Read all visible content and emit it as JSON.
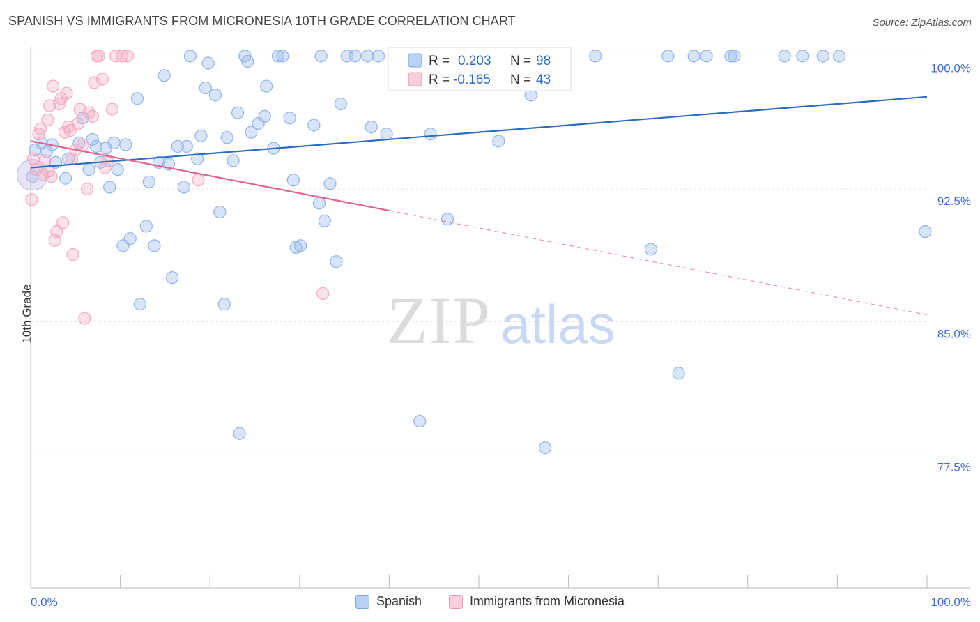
{
  "header": {
    "title": "SPANISH VS IMMIGRANTS FROM MICRONESIA 10TH GRADE CORRELATION CHART",
    "source": "Source: ZipAtlas.com"
  },
  "watermark": {
    "zip": "ZIP",
    "atlas": "atlas"
  },
  "chart_data": {
    "type": "scatter",
    "title": "SPANISH VS IMMIGRANTS FROM MICRONESIA 10TH GRADE CORRELATION CHART",
    "ylabel": "10th Grade",
    "xlabel": "",
    "xlim": [
      0,
      100
    ],
    "ylim": [
      70.0,
      100.8
    ],
    "x_tick_labels": [
      "0.0%",
      "100.0%"
    ],
    "y_ticks": [
      100.0,
      92.5,
      85.0,
      77.5
    ],
    "y_tick_labels": [
      "100.0%",
      "92.5%",
      "85.0%",
      "77.5%"
    ],
    "grid": true,
    "legend_position": "top-center",
    "series": [
      {
        "name": "Spanish",
        "color": "#8fb4ea",
        "line_color": "#2b6cc4",
        "r_label": "R =",
        "r_value": "0.203",
        "n_label": "N =",
        "n_value": "98",
        "trend": {
          "x": [
            0,
            100
          ],
          "y": [
            93.7,
            97.7
          ],
          "dashed_from": null
        },
        "points": [
          [
            0.2,
            93.2
          ],
          [
            0.5,
            94.7
          ],
          [
            1.2,
            95.1
          ],
          [
            1.8,
            94.6
          ],
          [
            2.4,
            95.0
          ],
          [
            2.8,
            94.0
          ],
          [
            3.9,
            93.1
          ],
          [
            4.2,
            94.2
          ],
          [
            5.4,
            95.1
          ],
          [
            5.8,
            96.5
          ],
          [
            6.5,
            93.6
          ],
          [
            6.9,
            95.3
          ],
          [
            7.3,
            94.9
          ],
          [
            7.8,
            94.0
          ],
          [
            8.4,
            94.8
          ],
          [
            8.8,
            92.6
          ],
          [
            9.3,
            95.1
          ],
          [
            9.7,
            93.6
          ],
          [
            10.3,
            89.3
          ],
          [
            10.6,
            95.0
          ],
          [
            11.1,
            89.7
          ],
          [
            11.9,
            97.6
          ],
          [
            12.2,
            86.0
          ],
          [
            12.9,
            90.4
          ],
          [
            13.2,
            92.9
          ],
          [
            13.8,
            89.3
          ],
          [
            14.3,
            94.0
          ],
          [
            14.9,
            98.9
          ],
          [
            15.4,
            93.9
          ],
          [
            15.8,
            87.5
          ],
          [
            16.4,
            94.9
          ],
          [
            17.1,
            92.6
          ],
          [
            17.4,
            94.9
          ],
          [
            17.8,
            100.0
          ],
          [
            18.6,
            94.2
          ],
          [
            19.0,
            95.5
          ],
          [
            19.5,
            98.2
          ],
          [
            19.8,
            99.6
          ],
          [
            20.6,
            97.8
          ],
          [
            21.1,
            91.2
          ],
          [
            21.6,
            86.0
          ],
          [
            21.9,
            95.4
          ],
          [
            22.6,
            94.1
          ],
          [
            23.1,
            96.8
          ],
          [
            23.3,
            78.7
          ],
          [
            23.9,
            100.0
          ],
          [
            24.2,
            99.7
          ],
          [
            24.6,
            95.7
          ],
          [
            25.4,
            96.2
          ],
          [
            26.1,
            96.6
          ],
          [
            26.3,
            98.3
          ],
          [
            27.1,
            94.8
          ],
          [
            27.6,
            100.0
          ],
          [
            28.1,
            100.0
          ],
          [
            28.9,
            96.5
          ],
          [
            29.3,
            93.0
          ],
          [
            29.6,
            89.2
          ],
          [
            30.1,
            89.3
          ],
          [
            31.6,
            96.1
          ],
          [
            32.2,
            91.7
          ],
          [
            32.8,
            90.7
          ],
          [
            32.4,
            100.0
          ],
          [
            33.4,
            92.8
          ],
          [
            34.1,
            88.4
          ],
          [
            34.6,
            97.3
          ],
          [
            35.3,
            100.0
          ],
          [
            36.2,
            100.0
          ],
          [
            37.6,
            100.0
          ],
          [
            38.0,
            96.0
          ],
          [
            38.8,
            100.0
          ],
          [
            39.7,
            95.6
          ],
          [
            40.6,
            100.0
          ],
          [
            41.2,
            100.0
          ],
          [
            42.6,
            99.5
          ],
          [
            43.4,
            79.4
          ],
          [
            44.6,
            95.6
          ],
          [
            45.1,
            100.0
          ],
          [
            46.5,
            90.8
          ],
          [
            48.1,
            100.0
          ],
          [
            52.2,
            95.2
          ],
          [
            53.5,
            100.0
          ],
          [
            55.1,
            100.0
          ],
          [
            55.8,
            97.8
          ],
          [
            56.5,
            100.0
          ],
          [
            57.4,
            77.9
          ],
          [
            58.9,
            100.0
          ],
          [
            63.0,
            100.0
          ],
          [
            69.2,
            89.1
          ],
          [
            71.1,
            100.0
          ],
          [
            72.3,
            82.1
          ],
          [
            74.0,
            100.0
          ],
          [
            75.4,
            100.0
          ],
          [
            78.1,
            100.0
          ],
          [
            78.5,
            100.0
          ],
          [
            84.1,
            100.0
          ],
          [
            86.1,
            100.0
          ],
          [
            88.4,
            100.0
          ],
          [
            90.2,
            100.0
          ],
          [
            99.8,
            90.1
          ]
        ]
      },
      {
        "name": "Immigrants from Micronesia",
        "color": "#f4a8c0",
        "line_color": "#e2648c",
        "r_label": "R =",
        "r_value": "-0.165",
        "n_label": "N =",
        "n_value": "43",
        "trend": {
          "x": [
            0,
            100
          ],
          "y": [
            95.2,
            85.4
          ],
          "dashed_from": 40
        },
        "points": [
          [
            0.1,
            91.9
          ],
          [
            0.3,
            94.2
          ],
          [
            0.6,
            93.6
          ],
          [
            0.9,
            95.6
          ],
          [
            1.1,
            95.9
          ],
          [
            1.4,
            93.3
          ],
          [
            1.6,
            94.1
          ],
          [
            1.9,
            96.4
          ],
          [
            2.1,
            97.2
          ],
          [
            2.3,
            93.2
          ],
          [
            2.5,
            98.3
          ],
          [
            2.7,
            89.6
          ],
          [
            2.9,
            90.1
          ],
          [
            3.2,
            97.3
          ],
          [
            3.4,
            97.6
          ],
          [
            3.6,
            90.6
          ],
          [
            3.8,
            95.7
          ],
          [
            4.0,
            97.9
          ],
          [
            4.2,
            96.0
          ],
          [
            4.4,
            95.8
          ],
          [
            4.6,
            94.2
          ],
          [
            4.7,
            88.8
          ],
          [
            5.0,
            94.7
          ],
          [
            5.3,
            96.2
          ],
          [
            5.5,
            97.0
          ],
          [
            5.8,
            95.0
          ],
          [
            6.0,
            85.2
          ],
          [
            6.3,
            92.5
          ],
          [
            6.5,
            96.8
          ],
          [
            6.9,
            96.6
          ],
          [
            7.1,
            98.5
          ],
          [
            7.4,
            100.0
          ],
          [
            7.6,
            100.0
          ],
          [
            8.0,
            98.7
          ],
          [
            8.3,
            93.7
          ],
          [
            8.6,
            94.1
          ],
          [
            9.1,
            97.0
          ],
          [
            9.5,
            100.0
          ],
          [
            10.2,
            100.0
          ],
          [
            10.8,
            100.0
          ],
          [
            18.7,
            93.0
          ],
          [
            32.6,
            86.6
          ],
          [
            2.0,
            93.5
          ]
        ]
      }
    ]
  },
  "legend_bottom": [
    {
      "label": "Spanish",
      "color": "#b9d1f4",
      "border": "#7ea6e0"
    },
    {
      "label": "Immigrants from Micronesia",
      "color": "#f9cfdc",
      "border": "#e69ab3"
    }
  ]
}
